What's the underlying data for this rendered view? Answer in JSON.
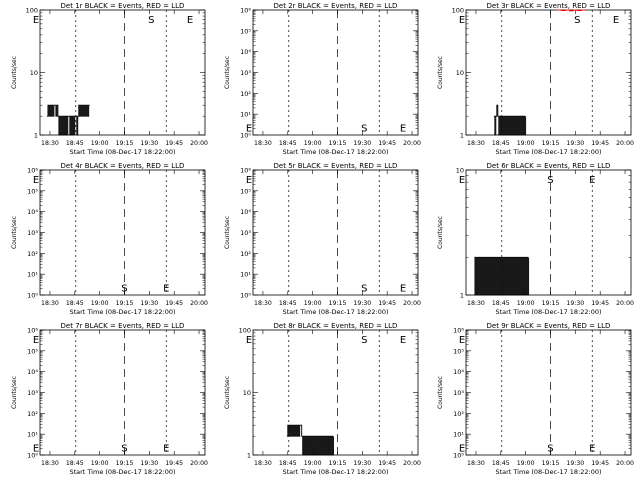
{
  "x_ticks": [
    "18:30",
    "18:45",
    "19:00",
    "19:15",
    "19:30",
    "19:45",
    "20:00"
  ],
  "xlabel": "Start Time (08-Dec-17 18:22:00)",
  "ylabel": "Counts/sec",
  "colors": {
    "events": "#000000",
    "lld": "#ff0000"
  },
  "chart_data": [
    {
      "type": "line",
      "title": "Det 1r BLACK = Events, RED = LLD",
      "ylog": true,
      "ylim": [
        1,
        100
      ],
      "y_ticks": [
        {
          "v": 1,
          "t": "1"
        },
        {
          "v": 10,
          "t": "10"
        },
        {
          "v": 100,
          "t": "100"
        }
      ],
      "series": [
        {
          "name": "Events",
          "color": "#000000",
          "x": [
            18.47,
            18.48,
            18.49,
            18.5,
            18.51,
            18.52,
            18.53,
            18.54,
            18.55,
            18.56,
            18.57,
            18.58,
            18.59,
            18.6,
            18.61,
            18.62,
            18.63,
            18.64,
            18.65,
            18.66,
            18.67,
            18.68,
            18.69,
            18.7,
            18.71,
            18.72,
            18.73,
            18.74,
            18.75,
            18.76,
            18.77,
            18.78,
            18.79,
            18.8,
            18.81,
            18.82,
            18.83,
            18.84,
            18.85,
            18.86,
            18.87,
            18.88,
            18.89,
            18.9
          ],
          "y": [
            2,
            3,
            2,
            3,
            2,
            3,
            2,
            3,
            3,
            2,
            3,
            2,
            1,
            2,
            1,
            2,
            1,
            2,
            1,
            2,
            1,
            2,
            2,
            1,
            2,
            1,
            2,
            1,
            2,
            2,
            1,
            2,
            3,
            2,
            3,
            2,
            3,
            2,
            3,
            2,
            3,
            2,
            3,
            3
          ]
        }
      ],
      "markers": [
        {
          "label": "",
          "t": 18.76,
          "dash": "2,3"
        },
        {
          "label": "S",
          "t": 19.25,
          "dash": "8,5"
        },
        {
          "label": "E",
          "t": 19.67,
          "dash": "2,3"
        }
      ],
      "letters": [
        {
          "label": "E",
          "t": 18.36,
          "y": 100
        },
        {
          "label": "S",
          "t": 19.52,
          "y": 100
        },
        {
          "label": "E",
          "t": 19.91,
          "y": 100
        }
      ]
    },
    {
      "type": "line",
      "title": "Det 2r BLACK = Events, RED = LLD",
      "ylog": true,
      "ylim": [
        1,
        1000000
      ],
      "y_ticks": [
        {
          "v": 1,
          "t": "10⁰"
        },
        {
          "v": 10,
          "t": "10¹"
        },
        {
          "v": 100,
          "t": "10²"
        },
        {
          "v": 1000,
          "t": "10³"
        },
        {
          "v": 10000,
          "t": "10⁴"
        },
        {
          "v": 100000,
          "t": "10⁵"
        },
        {
          "v": 1000000,
          "t": "10⁶"
        }
      ],
      "series": [],
      "markers": [
        {
          "label": "",
          "t": 18.76,
          "dash": "2,3"
        },
        {
          "label": "S",
          "t": 19.25,
          "dash": "8,5"
        },
        {
          "label": "E",
          "t": 19.67,
          "dash": "2,3"
        }
      ],
      "letters": [
        {
          "label": "E",
          "t": 18.36,
          "y": 2
        },
        {
          "label": "S",
          "t": 19.52,
          "y": 2
        },
        {
          "label": "E",
          "t": 19.91,
          "y": 2
        }
      ]
    },
    {
      "type": "line",
      "title": "Det 3r BLACK = Events, RED = LLD",
      "ylog": true,
      "ylim": [
        1,
        100
      ],
      "y_ticks": [
        {
          "v": 1,
          "t": "1"
        },
        {
          "v": 10,
          "t": "10"
        },
        {
          "v": 100,
          "t": "100"
        }
      ],
      "series": [
        {
          "name": "Events",
          "color": "#000000",
          "x": [
            18.68,
            18.69,
            18.7,
            18.71,
            18.72,
            18.73,
            18.74,
            18.75,
            18.76,
            18.77,
            18.78,
            18.79,
            18.8,
            18.81,
            18.82,
            18.83,
            18.84,
            18.85,
            18.86,
            18.87,
            18.88,
            18.89,
            18.9,
            18.91,
            18.92,
            18.93,
            18.94,
            18.95,
            18.96,
            18.97,
            18.98,
            18.99,
            19.0
          ],
          "y": [
            2,
            1,
            2,
            3,
            2,
            1,
            2,
            1,
            2,
            1,
            2,
            1,
            2,
            1,
            2,
            1,
            2,
            1,
            2,
            1,
            2,
            1,
            2,
            1,
            2,
            1,
            2,
            1,
            2,
            1,
            2,
            1,
            2
          ]
        },
        {
          "name": "LLD",
          "color": "#ff0000",
          "x": [
            19.32,
            19.36,
            19.4,
            19.44,
            19.48,
            19.52,
            19.56,
            19.6
          ],
          "y": [
            100,
            98,
            100,
            97,
            100,
            98,
            100,
            99
          ]
        }
      ],
      "markers": [
        {
          "label": "",
          "t": 18.76,
          "dash": "2,3"
        },
        {
          "label": "S",
          "t": 19.25,
          "dash": "8,5"
        },
        {
          "label": "E",
          "t": 19.67,
          "dash": "2,3"
        }
      ],
      "letters": [
        {
          "label": "E",
          "t": 18.36,
          "y": 100
        },
        {
          "label": "S",
          "t": 19.52,
          "y": 100
        },
        {
          "label": "E",
          "t": 19.91,
          "y": 100
        }
      ]
    },
    {
      "type": "line",
      "title": "Det 4r BLACK = Events, RED = LLD",
      "ylog": true,
      "ylim": [
        1,
        1000000
      ],
      "y_ticks": [
        {
          "v": 1,
          "t": "10⁰"
        },
        {
          "v": 10,
          "t": "10¹"
        },
        {
          "v": 100,
          "t": "10²"
        },
        {
          "v": 1000,
          "t": "10³"
        },
        {
          "v": 10000,
          "t": "10⁴"
        },
        {
          "v": 100000,
          "t": "10⁵"
        },
        {
          "v": 1000000,
          "t": "10⁶"
        }
      ],
      "series": [],
      "markers": [
        {
          "label": "",
          "t": 18.76,
          "dash": "2,3"
        },
        {
          "label": "S",
          "t": 19.25,
          "dash": "8,5"
        },
        {
          "label": "E",
          "t": 19.67,
          "dash": "2,3"
        }
      ],
      "letters": [
        {
          "label": "E",
          "t": 18.36,
          "y": 1000000
        },
        {
          "label": "S",
          "t": 19.25,
          "y": 2
        },
        {
          "label": "E",
          "t": 19.67,
          "y": 2
        }
      ]
    },
    {
      "type": "line",
      "title": "Det 5r BLACK = Events, RED = LLD",
      "ylog": true,
      "ylim": [
        1,
        1000000
      ],
      "y_ticks": [
        {
          "v": 1,
          "t": "10⁰"
        },
        {
          "v": 10,
          "t": "10¹"
        },
        {
          "v": 100,
          "t": "10²"
        },
        {
          "v": 1000,
          "t": "10³"
        },
        {
          "v": 10000,
          "t": "10⁴"
        },
        {
          "v": 100000,
          "t": "10⁵"
        },
        {
          "v": 1000000,
          "t": "10⁶"
        }
      ],
      "series": [],
      "markers": [
        {
          "label": "",
          "t": 18.76,
          "dash": "2,3"
        },
        {
          "label": "S",
          "t": 19.25,
          "dash": "8,5"
        },
        {
          "label": "E",
          "t": 19.67,
          "dash": "2,3"
        }
      ],
      "letters": [
        {
          "label": "E",
          "t": 18.36,
          "y": 1000000
        },
        {
          "label": "S",
          "t": 19.52,
          "y": 2
        },
        {
          "label": "E",
          "t": 19.91,
          "y": 2
        }
      ]
    },
    {
      "type": "line",
      "title": "Det 6r BLACK = Events, RED = LLD",
      "ylog": true,
      "ylim": [
        1,
        10
      ],
      "y_ticks": [
        {
          "v": 1,
          "t": "1"
        },
        {
          "v": 10,
          "t": "10"
        }
      ],
      "series": [
        {
          "name": "Events",
          "color": "#000000",
          "x": [
            18.48,
            18.49,
            18.5,
            18.51,
            18.52,
            18.53,
            18.54,
            18.55,
            18.56,
            18.57,
            18.58,
            18.59,
            18.6,
            18.61,
            18.62,
            18.63,
            18.64,
            18.65,
            18.66,
            18.67,
            18.68,
            18.69,
            18.7,
            18.71,
            18.72,
            18.73,
            18.74,
            18.75,
            18.76,
            18.77,
            18.78,
            18.79,
            18.8,
            18.81,
            18.82,
            18.83,
            18.84,
            18.85,
            18.86,
            18.87,
            18.88,
            18.89,
            18.9,
            18.91,
            18.92,
            18.93,
            18.94,
            18.95,
            18.96,
            18.97,
            18.98,
            18.99,
            19.0,
            19.01,
            19.02,
            19.03
          ],
          "y": [
            1,
            2,
            1,
            2,
            1,
            2,
            1,
            2,
            1,
            2,
            1,
            2,
            1,
            2,
            1,
            2,
            1,
            2,
            1,
            2,
            1,
            2,
            1,
            2,
            1,
            2,
            1,
            2,
            1,
            2,
            1,
            2,
            1,
            2,
            1,
            2,
            1,
            2,
            1,
            2,
            1,
            2,
            1,
            2,
            1,
            2,
            1,
            2,
            1,
            2,
            1,
            2,
            1,
            2,
            1,
            2
          ]
        }
      ],
      "markers": [
        {
          "label": "",
          "t": 18.76,
          "dash": "2,3"
        },
        {
          "label": "S",
          "t": 19.25,
          "dash": "8,5"
        },
        {
          "label": "E",
          "t": 19.67,
          "dash": "2,3"
        }
      ],
      "letters": [
        {
          "label": "E",
          "t": 18.36,
          "y": 10
        },
        {
          "label": "S",
          "t": 19.25,
          "y": 10
        },
        {
          "label": "E",
          "t": 19.67,
          "y": 10
        }
      ]
    },
    {
      "type": "line",
      "title": "Det 7r BLACK = Events, RED = LLD",
      "ylog": true,
      "ylim": [
        1,
        1000000
      ],
      "y_ticks": [
        {
          "v": 1,
          "t": "10⁰"
        },
        {
          "v": 10,
          "t": "10¹"
        },
        {
          "v": 100,
          "t": "10²"
        },
        {
          "v": 1000,
          "t": "10³"
        },
        {
          "v": 10000,
          "t": "10⁴"
        },
        {
          "v": 100000,
          "t": "10⁵"
        },
        {
          "v": 1000000,
          "t": "10⁶"
        }
      ],
      "series": [],
      "markers": [
        {
          "label": "",
          "t": 18.76,
          "dash": "2,3"
        },
        {
          "label": "S",
          "t": 19.25,
          "dash": "8,5"
        },
        {
          "label": "E",
          "t": 19.67,
          "dash": "2,3"
        }
      ],
      "letters": [
        {
          "label": "E",
          "t": 18.36,
          "y": 1000000
        },
        {
          "label": "E",
          "t": 18.36,
          "y": 2
        },
        {
          "label": "S",
          "t": 19.25,
          "y": 2
        },
        {
          "label": "E",
          "t": 19.67,
          "y": 2
        }
      ]
    },
    {
      "type": "line",
      "title": "Det 8r BLACK = Events, RED = LLD",
      "ylog": true,
      "ylim": [
        1,
        100
      ],
      "y_ticks": [
        {
          "v": 1,
          "t": "1"
        },
        {
          "v": 10,
          "t": "10"
        },
        {
          "v": 100,
          "t": "100"
        }
      ],
      "series": [
        {
          "name": "Events",
          "color": "#000000",
          "x": [
            18.74,
            18.75,
            18.76,
            18.77,
            18.78,
            18.79,
            18.8,
            18.81,
            18.82,
            18.83,
            18.84,
            18.85,
            18.86,
            18.87,
            18.88,
            18.89,
            18.9,
            18.91,
            18.92,
            18.93,
            18.94,
            18.95,
            18.96,
            18.97,
            18.98,
            18.99,
            19.0,
            19.01,
            19.02,
            19.03,
            19.04,
            19.05,
            19.06,
            19.07,
            19.08,
            19.09,
            19.1,
            19.11,
            19.12,
            19.13,
            19.14,
            19.15,
            19.16,
            19.17,
            19.18,
            19.19,
            19.2,
            19.21
          ],
          "y": [
            2,
            3,
            2,
            3,
            2,
            3,
            2,
            3,
            2,
            3,
            2,
            3,
            2,
            3,
            3,
            2,
            1,
            2,
            1,
            2,
            1,
            2,
            1,
            2,
            1,
            2,
            1,
            2,
            1,
            2,
            1,
            2,
            1,
            2,
            1,
            2,
            1,
            2,
            1,
            2,
            1,
            2,
            1,
            2,
            1,
            2,
            1,
            2
          ]
        }
      ],
      "markers": [
        {
          "label": "",
          "t": 18.76,
          "dash": "2,3"
        },
        {
          "label": "S",
          "t": 19.25,
          "dash": "8,5"
        },
        {
          "label": "E",
          "t": 19.67,
          "dash": "2,3"
        }
      ],
      "letters": [
        {
          "label": "E",
          "t": 18.36,
          "y": 100
        },
        {
          "label": "S",
          "t": 19.52,
          "y": 100
        },
        {
          "label": "E",
          "t": 19.91,
          "y": 100
        }
      ]
    },
    {
      "type": "line",
      "title": "Det 9r BLACK = Events, RED = LLD",
      "ylog": true,
      "ylim": [
        1,
        1000000
      ],
      "y_ticks": [
        {
          "v": 1,
          "t": "10⁰"
        },
        {
          "v": 10,
          "t": "10¹"
        },
        {
          "v": 100,
          "t": "10²"
        },
        {
          "v": 1000,
          "t": "10³"
        },
        {
          "v": 10000,
          "t": "10⁴"
        },
        {
          "v": 100000,
          "t": "10⁵"
        },
        {
          "v": 1000000,
          "t": "10⁶"
        }
      ],
      "series": [],
      "markers": [
        {
          "label": "",
          "t": 18.76,
          "dash": "2,3"
        },
        {
          "label": "S",
          "t": 19.25,
          "dash": "8,5"
        },
        {
          "label": "E",
          "t": 19.67,
          "dash": "2,3"
        }
      ],
      "letters": [
        {
          "label": "E",
          "t": 18.36,
          "y": 1000000
        },
        {
          "label": "E",
          "t": 18.36,
          "y": 2
        },
        {
          "label": "S",
          "t": 19.25,
          "y": 2
        },
        {
          "label": "E",
          "t": 19.67,
          "y": 2
        }
      ]
    }
  ]
}
